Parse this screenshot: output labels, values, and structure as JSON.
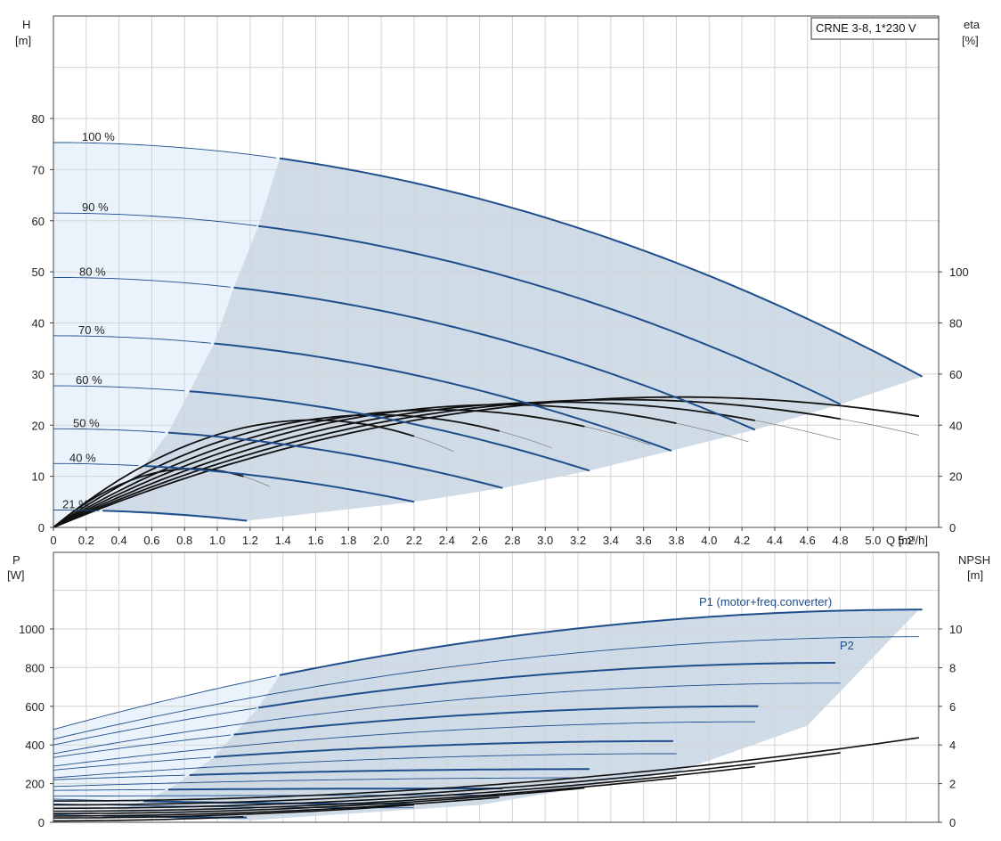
{
  "title": "CRNE 3-8, 1*230 V",
  "colors": {
    "curve_blue": "#1f4e8c",
    "region_fill": "#cfdbe7",
    "light_fill": "#eaf3fb",
    "grid": "#d4d4d4",
    "eff_black": "#111111"
  },
  "chart_data": [
    {
      "type": "line",
      "name_ref": "head",
      "xlabel": "Q [m³/h]",
      "ylabel_left": [
        "H",
        "[m]"
      ],
      "ylabel_right": [
        "eta",
        "[%]"
      ],
      "xlim": [
        0,
        5.4
      ],
      "ylim": [
        0,
        80
      ],
      "x_ticks": [
        "0",
        "0.2",
        "0.4",
        "0.6",
        "0.8",
        "1.0",
        "1.2",
        "1.4",
        "1.6",
        "1.8",
        "2.0",
        "2.2",
        "2.4",
        "2.6",
        "2.8",
        "3.0",
        "3.2",
        "3.4",
        "3.6",
        "3.8",
        "4.0",
        "4.2",
        "4.4",
        "4.6",
        "4.8",
        "5.0",
        "5.2"
      ],
      "y_ticks_left": [
        "0",
        "10",
        "20",
        "30",
        "40",
        "50",
        "60",
        "70",
        "80"
      ],
      "y_ticks_right": [
        "0",
        "20",
        "40",
        "60",
        "80",
        "100"
      ],
      "speed_curves": [
        {
          "label": "100 %",
          "h0": 75.3,
          "qmax": 5.3,
          "hend": 29.5,
          "qmin_bold": 1.38
        },
        {
          "label": "90 %",
          "h0": 61.5,
          "qmax": 4.8,
          "hend": 24.1,
          "qmin_bold": 1.25
        },
        {
          "label": "80 %",
          "h0": 48.9,
          "qmax": 4.28,
          "hend": 19.1,
          "qmin_bold": 1.1
        },
        {
          "label": "70 %",
          "h0": 37.5,
          "qmax": 3.77,
          "hend": 15.0,
          "qmin_bold": 0.98
        },
        {
          "label": "60 %",
          "h0": 27.7,
          "qmax": 3.27,
          "hend": 11.1,
          "qmin_bold": 0.83
        },
        {
          "label": "50 %",
          "h0": 19.3,
          "qmax": 2.74,
          "hend": 7.7,
          "qmin_bold": 0.7
        },
        {
          "label": "40 %",
          "h0": 12.5,
          "qmax": 2.2,
          "hend": 5.0,
          "qmin_bold": 0.55
        },
        {
          "label": "21 %",
          "h0": 3.4,
          "qmax": 1.18,
          "hend": 1.3,
          "qmin_bold": 0.3
        }
      ],
      "efficiency_curves_qmax": [
        5.3,
        4.8,
        4.3,
        3.8,
        3.27,
        2.74,
        2.2,
        1.18
      ],
      "efficiency_curves_peak_pct": [
        51,
        50,
        49,
        48,
        46,
        44,
        42,
        23
      ]
    },
    {
      "type": "line",
      "name_ref": "power",
      "xlim": [
        0,
        5.4
      ],
      "ylim": [
        0,
        1200
      ],
      "ylabel_left": [
        "P",
        "[W]"
      ],
      "ylabel_right": [
        "NPSH",
        "[m]"
      ],
      "y_ticks_left": [
        "0",
        "200",
        "400",
        "600",
        "800",
        "1000"
      ],
      "y_ticks_right": [
        "0",
        "2",
        "4",
        "6",
        "8",
        "10"
      ],
      "series_labels": {
        "p1": "P1 (motor+freq.converter)",
        "p2": "P2"
      },
      "p1_curves": [
        {
          "p0": 480,
          "pend": 1100,
          "qmax": 5.3
        },
        {
          "p0": 400,
          "pend": 825,
          "qmax": 4.8
        },
        {
          "p0": 335,
          "pend": 600,
          "qmax": 4.3
        },
        {
          "p0": 270,
          "pend": 420,
          "qmax": 3.8
        },
        {
          "p0": 220,
          "pend": 275,
          "qmax": 3.27
        },
        {
          "p0": 165,
          "pend": 175,
          "qmax": 2.74
        },
        {
          "p0": 120,
          "pend": 95,
          "qmax": 2.2
        },
        {
          "p0": 40,
          "pend": 25,
          "qmax": 1.18
        }
      ],
      "p2_curves": [
        {
          "p0": 430,
          "pend": 960,
          "qmax": 5.3
        },
        {
          "p0": 355,
          "pend": 720,
          "qmax": 4.8
        },
        {
          "p0": 290,
          "pend": 520,
          "qmax": 4.3
        },
        {
          "p0": 230,
          "pend": 355,
          "qmax": 3.8
        },
        {
          "p0": 185,
          "pend": 230,
          "qmax": 3.27
        },
        {
          "p0": 135,
          "pend": 140,
          "qmax": 2.74
        },
        {
          "p0": 95,
          "pend": 75,
          "qmax": 2.2
        }
      ],
      "npsh_curves_end": [
        {
          "qmax": 5.3,
          "npsh_end": 4.4
        },
        {
          "qmax": 4.8,
          "npsh_end": 3.6
        },
        {
          "qmax": 4.3,
          "npsh_end": 2.9
        },
        {
          "qmax": 3.8,
          "npsh_end": 2.3
        },
        {
          "qmax": 3.27,
          "npsh_end": 1.8
        },
        {
          "qmax": 2.74,
          "npsh_end": 1.3
        },
        {
          "qmax": 2.2,
          "npsh_end": 0.9
        },
        {
          "qmax": 1.18,
          "npsh_end": 0.3
        }
      ]
    }
  ]
}
